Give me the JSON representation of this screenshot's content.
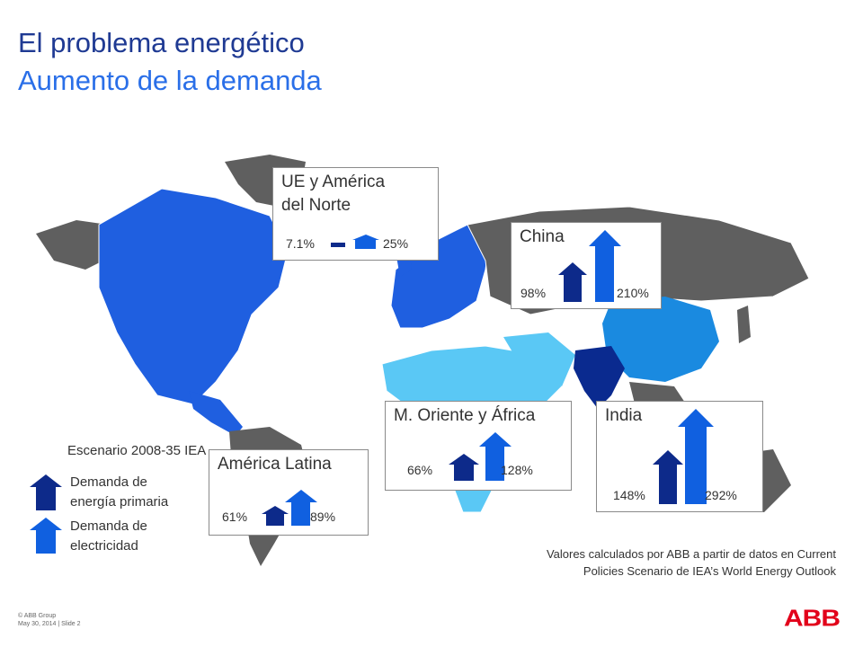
{
  "slide": {
    "title_line1": "El problema energético",
    "title_line2": "Aumento de la demanda"
  },
  "colors": {
    "primary_energy": "#0d2a8a",
    "electricity": "#1060e0",
    "eu_na": "#1f5fe0",
    "china": "#1a8ae0",
    "mideast_africa": "#5ac8f5",
    "india": "#0a2a8f",
    "latam": "#1f5fe0",
    "rest": "#5f5f5f",
    "abb_red": "#e2001a"
  },
  "regions": [
    {
      "name": "UE y América del Norte",
      "name_lines": [
        "UE y América",
        "del Norte"
      ],
      "primary": "7.1%",
      "electricity": "25%"
    },
    {
      "name": "China",
      "name_lines": [
        "China"
      ],
      "primary": "98%",
      "electricity": "210%"
    },
    {
      "name": "M. Oriente y África",
      "name_lines": [
        "M. Oriente y África"
      ],
      "primary": "66%",
      "electricity": "128%"
    },
    {
      "name": "India",
      "name_lines": [
        "India"
      ],
      "primary": "148%",
      "electricity": "292%"
    },
    {
      "name": "América Latina",
      "name_lines": [
        "América Latina"
      ],
      "primary": "61%",
      "electricity": "89%"
    }
  ],
  "legend": {
    "title": "Escenario 2008-35 IEA",
    "primary_lines": [
      "Demanda de",
      "energía primaria"
    ],
    "electricity_lines": [
      "Demanda de",
      "electricidad"
    ]
  },
  "note_lines": [
    "Valores calculados por ABB a partir de datos en Current",
    "Policies Scenario de IEA’s World Energy Outlook"
  ],
  "footer": {
    "copyright": "© ABB Group",
    "date_slide": "May 30, 2014 | Slide 2"
  },
  "logo": "ABB"
}
